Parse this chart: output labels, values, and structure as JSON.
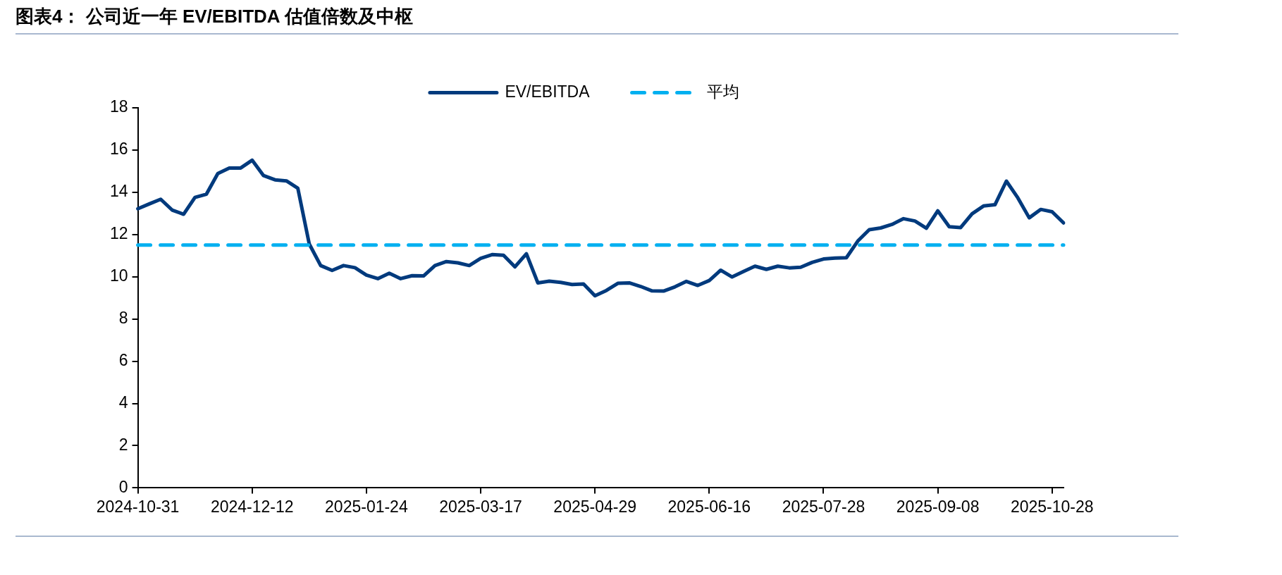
{
  "chart_data": {
    "type": "line",
    "title": "图表4： 公司近一年 EV/EBITDA 估值倍数及中枢",
    "categories": [
      "2024-10-31",
      null,
      null,
      null,
      null,
      null,
      null,
      null,
      null,
      null,
      "2024-12-12",
      null,
      null,
      null,
      null,
      null,
      null,
      null,
      null,
      null,
      "2025-01-24",
      null,
      null,
      null,
      null,
      null,
      null,
      null,
      null,
      null,
      "2025-03-17",
      null,
      null,
      null,
      null,
      null,
      null,
      null,
      null,
      null,
      "2025-04-29",
      null,
      null,
      null,
      null,
      null,
      null,
      null,
      null,
      null,
      "2025-06-16",
      null,
      null,
      null,
      null,
      null,
      null,
      null,
      null,
      null,
      "2025-07-28",
      null,
      null,
      null,
      null,
      null,
      null,
      null,
      null,
      null,
      "2025-09-08",
      null,
      null,
      null,
      null,
      null,
      null,
      null,
      null,
      null,
      "2025-10-28",
      null
    ],
    "series": [
      {
        "name": "EV/EBITDA",
        "color": "#003a7d",
        "values": [
          13.22,
          13.45,
          13.67,
          13.16,
          12.96,
          13.76,
          13.91,
          14.89,
          15.15,
          15.15,
          15.52,
          14.79,
          14.59,
          14.54,
          14.19,
          11.55,
          10.53,
          10.3,
          10.53,
          10.43,
          10.08,
          9.91,
          10.17,
          9.91,
          10.05,
          10.04,
          10.53,
          10.72,
          10.66,
          10.53,
          10.87,
          11.05,
          11.02,
          10.47,
          11.09,
          9.71,
          9.79,
          9.73,
          9.63,
          9.66,
          9.1,
          9.35,
          9.69,
          9.71,
          9.54,
          9.33,
          9.32,
          9.52,
          9.78,
          9.59,
          9.82,
          10.31,
          9.99,
          10.25,
          10.5,
          10.35,
          10.5,
          10.42,
          10.45,
          10.68,
          10.84,
          10.88,
          10.9,
          11.69,
          12.23,
          12.31,
          12.48,
          12.75,
          12.64,
          12.3,
          13.12,
          12.37,
          12.33,
          12.98,
          13.35,
          13.41,
          14.53,
          13.74,
          12.79,
          13.19,
          13.08,
          12.55
        ]
      }
    ],
    "ylim": [
      0,
      18
    ],
    "yticks": [
      0,
      2,
      4,
      6,
      8,
      10,
      12,
      14,
      16,
      18
    ],
    "ref_lines": [
      {
        "axis": "y",
        "value": 11.5,
        "label": "平均",
        "color": "#00b0f0",
        "line_style": "dashed"
      }
    ],
    "legend": "top",
    "grid": false,
    "marker": "none",
    "line_style": "solid"
  }
}
